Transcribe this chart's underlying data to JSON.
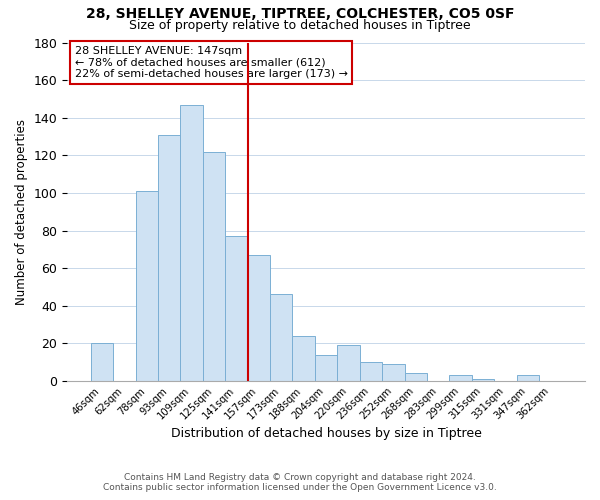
{
  "title": "28, SHELLEY AVENUE, TIPTREE, COLCHESTER, CO5 0SF",
  "subtitle": "Size of property relative to detached houses in Tiptree",
  "xlabel": "Distribution of detached houses by size in Tiptree",
  "ylabel": "Number of detached properties",
  "bar_labels": [
    "46sqm",
    "62sqm",
    "78sqm",
    "93sqm",
    "109sqm",
    "125sqm",
    "141sqm",
    "157sqm",
    "173sqm",
    "188sqm",
    "204sqm",
    "220sqm",
    "236sqm",
    "252sqm",
    "268sqm",
    "283sqm",
    "299sqm",
    "315sqm",
    "331sqm",
    "347sqm",
    "362sqm"
  ],
  "bar_values": [
    20,
    0,
    101,
    131,
    147,
    122,
    77,
    67,
    46,
    24,
    14,
    19,
    10,
    9,
    4,
    0,
    3,
    1,
    0,
    3,
    0
  ],
  "bar_color": "#cfe2f3",
  "bar_edge_color": "#7bafd4",
  "vline_color": "#cc0000",
  "annotation_title": "28 SHELLEY AVENUE: 147sqm",
  "annotation_line1": "← 78% of detached houses are smaller (612)",
  "annotation_line2": "22% of semi-detached houses are larger (173) →",
  "annotation_box_color": "#ffffff",
  "annotation_box_edge": "#cc0000",
  "ylim": [
    0,
    180
  ],
  "footer1": "Contains HM Land Registry data © Crown copyright and database right 2024.",
  "footer2": "Contains public sector information licensed under the Open Government Licence v3.0.",
  "background_color": "#ffffff",
  "grid_color": "#c8d8ea"
}
